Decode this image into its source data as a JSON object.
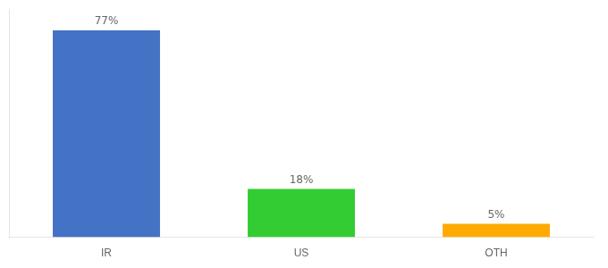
{
  "chart_data": {
    "type": "bar",
    "categories": [
      "IR",
      "US",
      "OTH"
    ],
    "values": [
      77,
      18,
      5
    ],
    "value_labels": [
      "77%",
      "18%",
      "5%"
    ],
    "colors": [
      "#4472c4",
      "#33cc33",
      "#ffaa00"
    ],
    "ylim": [
      0,
      85
    ],
    "grid": false,
    "data_labels": true,
    "tick_labels": "x"
  }
}
